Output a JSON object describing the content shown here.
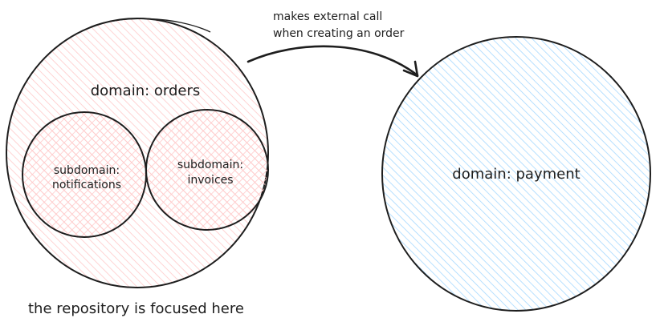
{
  "diagram": {
    "orders": {
      "label": "domain: orders",
      "fill_color": "#ffc9c9",
      "stroke_color": "#1e1e1e"
    },
    "notifications": {
      "label_line1": "subdomain:",
      "label_line2": "notifications",
      "fill_color": "#ffc9c9"
    },
    "invoices": {
      "label_line1": "subdomain:",
      "label_line2": "invoices",
      "fill_color": "#ffc9c9"
    },
    "payment": {
      "label": "domain: payment",
      "fill_color": "#a5d8ff",
      "stroke_color": "#1e1e1e"
    },
    "arrow": {
      "label_line1": "makes external call",
      "label_line2": "when creating an order",
      "from": "domain: orders",
      "to": "domain: payment"
    },
    "caption": "the repository is focused here"
  }
}
